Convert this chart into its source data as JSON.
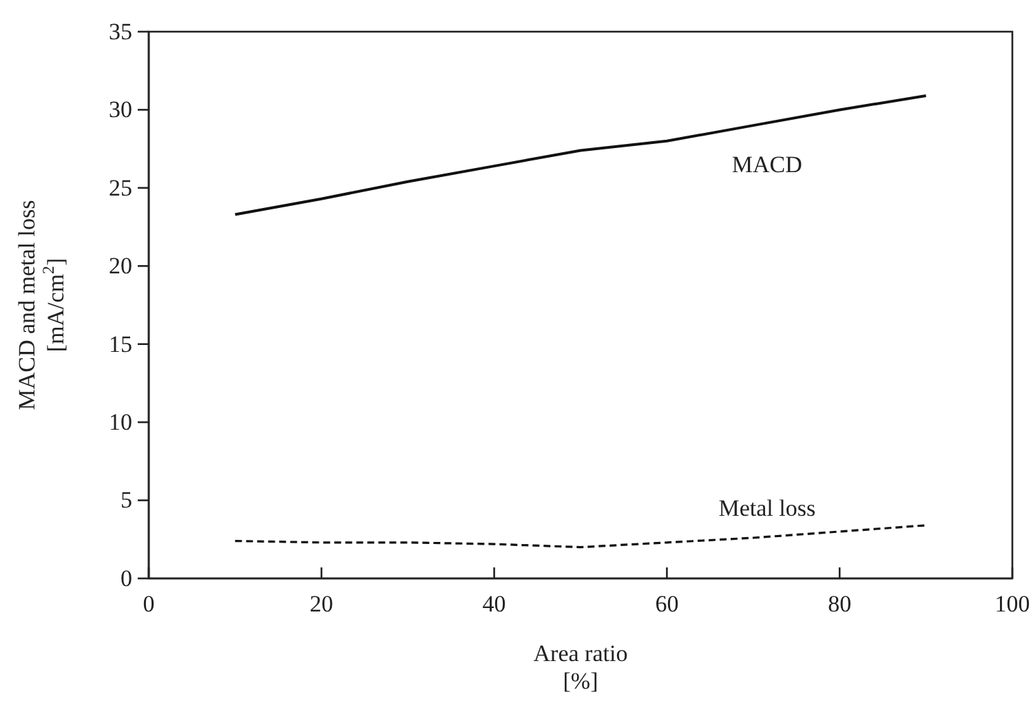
{
  "chart_data": {
    "type": "line",
    "xlabel": "Area ratio\n[%]",
    "ylabel": "MACD and metal loss\n[mA/cm$^{2}$]",
    "xlim": [
      0,
      100
    ],
    "xticks": [
      0,
      20,
      40,
      60,
      80,
      100
    ],
    "ylim": [
      0,
      35
    ],
    "yticks": [
      0,
      5,
      10,
      15,
      20,
      25,
      30,
      35
    ],
    "x": [
      10,
      20,
      30,
      40,
      50,
      60,
      70,
      80,
      90
    ],
    "series": [
      {
        "name": "MACD",
        "color": "#111111",
        "line_style": "solid",
        "values": [
          23.3,
          24.3,
          25.4,
          26.4,
          27.4,
          28.0,
          29.0,
          30.0,
          30.9
        ]
      },
      {
        "name": "Metal loss",
        "color": "#111111",
        "line_style": "dashed",
        "values": [
          2.4,
          2.3,
          2.3,
          2.2,
          2.0,
          2.3,
          2.6,
          3.0,
          3.4
        ]
      }
    ],
    "grid": false
  }
}
